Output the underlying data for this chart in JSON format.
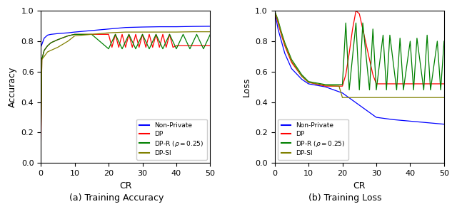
{
  "title_a": "(a) Training Accuracy",
  "title_b": "(b) Training Loss",
  "xlabel": "CR",
  "ylabel_a": "Accuracy",
  "ylabel_b": "Loss",
  "xlim": [
    0,
    50
  ],
  "ylim_a": [
    0.0,
    1.0
  ],
  "ylim_b": [
    0.0,
    1.0
  ],
  "legend_labels": [
    "Non-Private",
    "DP",
    "DP-R ($\\rho = 0.25$)",
    "DP-SI"
  ],
  "colors": {
    "non_private": "#0000ff",
    "dp": "#ff0000",
    "dp_r": "#008000",
    "dp_si": "#808000"
  },
  "acc": {
    "non_private": {
      "x": [
        0,
        1,
        2,
        3,
        5,
        8,
        10,
        15,
        20,
        25,
        30,
        35,
        40,
        45,
        50
      ],
      "y": [
        0.76,
        0.82,
        0.84,
        0.845,
        0.85,
        0.855,
        0.86,
        0.87,
        0.88,
        0.89,
        0.893,
        0.895,
        0.895,
        0.897,
        0.898
      ]
    },
    "dp": {
      "x": [
        0,
        0.3,
        1,
        2,
        3,
        5,
        8,
        10,
        15,
        20,
        21,
        22,
        23,
        24,
        25,
        26,
        27,
        28,
        29,
        30,
        31,
        32,
        33,
        34,
        35,
        36,
        37,
        38,
        39,
        40,
        41,
        42,
        43,
        44,
        45,
        46,
        47,
        48,
        49,
        50
      ],
      "y": [
        0.03,
        0.68,
        0.74,
        0.77,
        0.79,
        0.81,
        0.835,
        0.845,
        0.845,
        0.845,
        0.76,
        0.845,
        0.76,
        0.845,
        0.76,
        0.845,
        0.76,
        0.845,
        0.76,
        0.845,
        0.76,
        0.845,
        0.76,
        0.845,
        0.76,
        0.845,
        0.76,
        0.845,
        0.76,
        0.77,
        0.77,
        0.77,
        0.77,
        0.77,
        0.77,
        0.77,
        0.77,
        0.77,
        0.77,
        0.77
      ]
    },
    "dp_r": {
      "x": [
        0,
        0.3,
        1,
        2,
        3,
        5,
        8,
        10,
        15,
        20,
        22,
        24,
        26,
        28,
        30,
        32,
        34,
        36,
        38,
        40,
        42,
        44,
        46,
        48,
        50
      ],
      "y": [
        0.15,
        0.68,
        0.74,
        0.77,
        0.79,
        0.81,
        0.835,
        0.845,
        0.845,
        0.75,
        0.845,
        0.75,
        0.845,
        0.75,
        0.845,
        0.75,
        0.845,
        0.75,
        0.845,
        0.75,
        0.845,
        0.75,
        0.845,
        0.75,
        0.845
      ]
    },
    "dp_si": {
      "x": [
        0,
        0.3,
        1,
        2,
        3,
        5,
        8,
        10,
        15,
        20,
        25,
        30,
        35,
        40,
        45,
        50
      ],
      "y": [
        0.15,
        0.68,
        0.7,
        0.73,
        0.74,
        0.76,
        0.8,
        0.835,
        0.845,
        0.855,
        0.86,
        0.86,
        0.86,
        0.86,
        0.862,
        0.862
      ]
    }
  },
  "loss": {
    "non_private": {
      "x": [
        0,
        1,
        2,
        3,
        5,
        8,
        10,
        15,
        20,
        25,
        30,
        35,
        40,
        45,
        50
      ],
      "y": [
        1.0,
        0.88,
        0.8,
        0.72,
        0.62,
        0.55,
        0.52,
        0.5,
        0.46,
        0.38,
        0.3,
        0.285,
        0.275,
        0.265,
        0.255
      ]
    },
    "dp": {
      "x": [
        0,
        1,
        2,
        3,
        5,
        8,
        10,
        15,
        20,
        21,
        22,
        23,
        24,
        25,
        26,
        27,
        28,
        29,
        30,
        32,
        35,
        40,
        45,
        50
      ],
      "y": [
        1.0,
        0.92,
        0.84,
        0.77,
        0.66,
        0.57,
        0.53,
        0.505,
        0.505,
        0.58,
        0.72,
        0.88,
        1.0,
        0.98,
        0.88,
        0.78,
        0.68,
        0.58,
        0.52,
        0.52,
        0.52,
        0.52,
        0.52,
        0.52
      ]
    },
    "dp_r": {
      "x": [
        0,
        1,
        2,
        3,
        5,
        8,
        10,
        15,
        20,
        21,
        22,
        24,
        25,
        26,
        28,
        29,
        30,
        32,
        33,
        34,
        36,
        37,
        38,
        40,
        41,
        42,
        44,
        45,
        46,
        48,
        49,
        50
      ],
      "y": [
        1.0,
        0.94,
        0.86,
        0.79,
        0.68,
        0.58,
        0.535,
        0.515,
        0.515,
        0.92,
        0.48,
        0.92,
        0.48,
        0.92,
        0.48,
        0.88,
        0.48,
        0.84,
        0.48,
        0.84,
        0.48,
        0.82,
        0.48,
        0.8,
        0.48,
        0.82,
        0.48,
        0.84,
        0.48,
        0.8,
        0.48,
        0.8
      ]
    },
    "dp_si": {
      "x": [
        0,
        1,
        2,
        3,
        5,
        8,
        10,
        15,
        19,
        20,
        25,
        30,
        35,
        40,
        45,
        50
      ],
      "y": [
        1.0,
        0.93,
        0.85,
        0.78,
        0.67,
        0.57,
        0.53,
        0.51,
        0.505,
        0.43,
        0.43,
        0.43,
        0.43,
        0.43,
        0.43,
        0.43
      ]
    }
  }
}
